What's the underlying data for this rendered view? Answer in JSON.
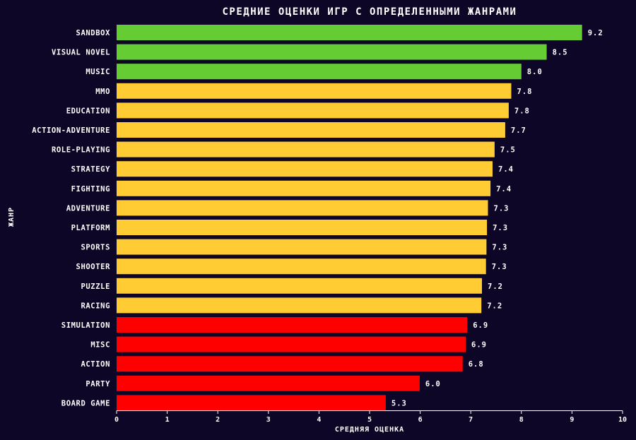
{
  "chart_data": {
    "type": "bar",
    "orientation": "horizontal",
    "title": "СРЕДНИЕ ОЦЕНКИ ИГР С ОПРЕДЕЛЕННЫМИ ЖАНРАМИ",
    "xlabel": "СРЕДНЯЯ ОЦЕНКА",
    "ylabel": "ЖАНР",
    "xlim": [
      0,
      10
    ],
    "xticks": [
      0,
      1,
      2,
      3,
      4,
      5,
      6,
      7,
      8,
      9,
      10
    ],
    "grid": false,
    "categories": [
      "SANDBOX",
      "VISUAL NOVEL",
      "MUSIC",
      "MMO",
      "EDUCATION",
      "ACTION-ADVENTURE",
      "ROLE-PLAYING",
      "STRATEGY",
      "FIGHTING",
      "ADVENTURE",
      "PLATFORM",
      "SPORTS",
      "SHOOTER",
      "PUZZLE",
      "RACING",
      "SIMULATION",
      "MISC",
      "ACTION",
      "PARTY",
      "BOARD GAME"
    ],
    "values": [
      9.2,
      8.5,
      8.0,
      7.8,
      7.75,
      7.68,
      7.47,
      7.43,
      7.39,
      7.34,
      7.32,
      7.31,
      7.3,
      7.22,
      7.21,
      6.93,
      6.9,
      6.84,
      5.99,
      5.32
    ],
    "value_labels": [
      "9.2",
      "8.5",
      "8.0",
      "7.8",
      "7.8",
      "7.7",
      "7.5",
      "7.4",
      "7.4",
      "7.3",
      "7.3",
      "7.3",
      "7.3",
      "7.2",
      "7.2",
      "6.9",
      "6.9",
      "6.8",
      "6.0",
      "5.3"
    ],
    "bar_colors": [
      "#66cc33",
      "#66cc33",
      "#66cc33",
      "#ffcc33",
      "#ffcc33",
      "#ffcc33",
      "#ffcc33",
      "#ffcc33",
      "#ffcc33",
      "#ffcc33",
      "#ffcc33",
      "#ffcc33",
      "#ffcc33",
      "#ffcc33",
      "#ffcc33",
      "#ff0000",
      "#ff0000",
      "#ff0000",
      "#ff0000",
      "#ff0000"
    ]
  },
  "colors": {
    "background": "#0d0627",
    "text": "#ffffff",
    "high": "#66cc33",
    "mid": "#ffcc33",
    "low": "#ff0000"
  }
}
